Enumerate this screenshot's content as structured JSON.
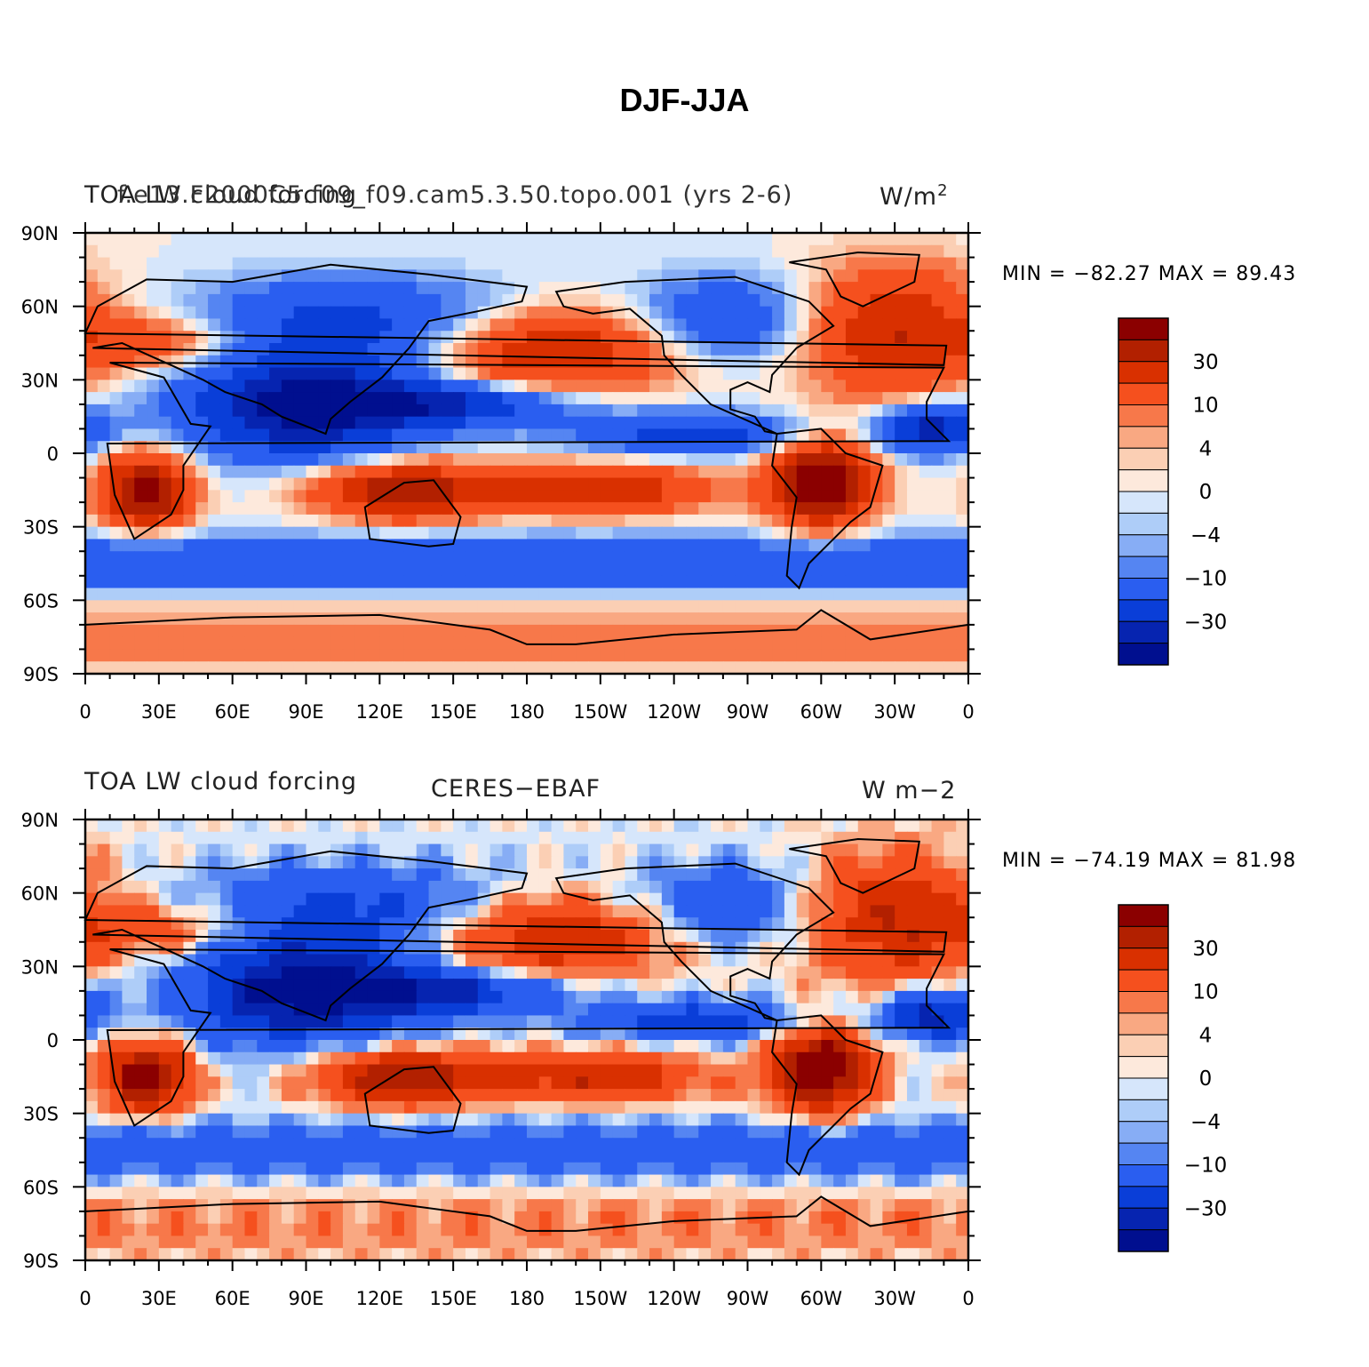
{
  "title": "DJF-JJA",
  "panels": [
    {
      "left_label": "TOA LW cloud forcing",
      "center_label": "f.e13.F2000C5.f09_f09.cam5.3.50.topo.001 (yrs 2-6)",
      "right_label": "W/m",
      "right_label_sup": "2",
      "min_max": "MIN = −82.27  MAX =   89.43"
    },
    {
      "left_label": "TOA LW cloud forcing",
      "center_label": "CERES−EBAF",
      "right_label": "W m−2",
      "right_label_sup": "",
      "min_max": "MIN = −74.19  MAX =   81.98"
    }
  ],
  "axes": {
    "lon_labels": [
      "0",
      "30E",
      "60E",
      "90E",
      "120E",
      "150E",
      "180",
      "150W",
      "120W",
      "90W",
      "60W",
      "30W",
      "0"
    ],
    "lat_labels": [
      "90N",
      "60N",
      "30N",
      "0",
      "30S",
      "60S",
      "90S"
    ]
  },
  "colorbar": {
    "colors": [
      "#8b0000",
      "#b22000",
      "#d93000",
      "#f5501e",
      "#f7784a",
      "#f9a882",
      "#fbcfb4",
      "#fde9dc",
      "#d6e6fb",
      "#aecdf8",
      "#87adf5",
      "#5585f2",
      "#2a5ef0",
      "#0a3ed8",
      "#0624b0",
      "#000f8f"
    ],
    "labels": [
      "30",
      "10",
      "4",
      "0",
      "−4",
      "−10",
      "−30"
    ]
  },
  "chart_data": {
    "type": "heatmap",
    "title": "DJF-JJA",
    "xlabel": "",
    "ylabel": "",
    "x_range": [
      "0",
      "0"
    ],
    "y_range": [
      "90S",
      "90N"
    ],
    "panels": [
      {
        "name": "f.e13.F2000C5.f09_f09.cam5.3.50.topo.001 (yrs 2-6)",
        "min": -82.27,
        "max": 89.43
      },
      {
        "name": "CERES−EBAF",
        "min": -74.19,
        "max": 81.98
      }
    ],
    "levels": [
      -30,
      -10,
      -4,
      0,
      4,
      10,
      30
    ]
  }
}
